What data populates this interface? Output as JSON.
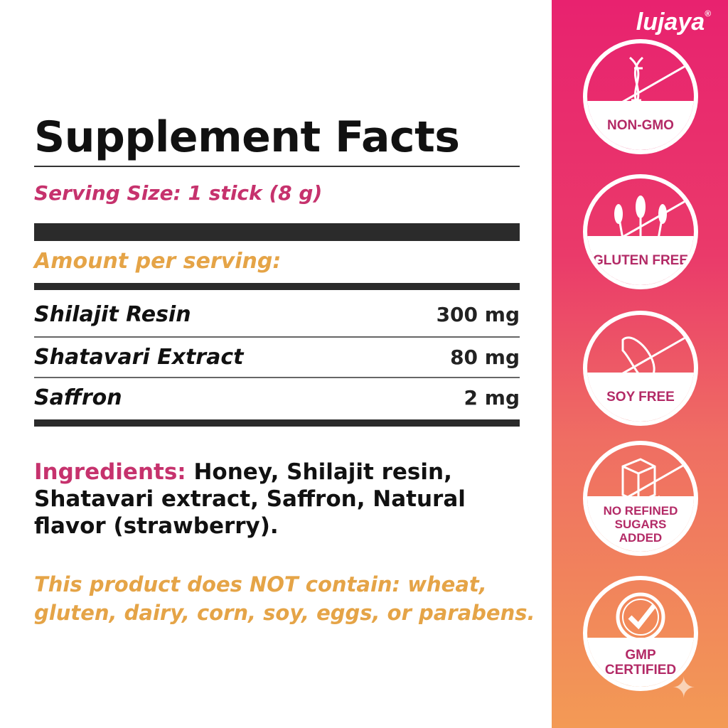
{
  "title": "Supplement Facts",
  "serving_size": "Serving Size: 1 stick (8 g)",
  "amount_per_serving": "Amount per serving:",
  "rows": [
    {
      "name": "Shilajit Resin",
      "amount": "300 mg"
    },
    {
      "name": "Shatavari Extract",
      "amount": "80 mg"
    },
    {
      "name": "Saffron",
      "amount": "2 mg"
    }
  ],
  "ingredients": {
    "label": "Ingredients:",
    "text": " Honey, Shilajit resin, Shatavari extract, Saffron, Natural flavor (strawberry)."
  },
  "disclaimer": "This product does NOT contain: wheat, gluten, dairy, corn, soy, eggs, or parabens.",
  "brand": {
    "name": "lujaya",
    "mark": "®"
  },
  "badges": [
    {
      "label": "NON-GMO",
      "icon": "dna-icon"
    },
    {
      "label": "GLUTEN FREE",
      "icon": "wheat-icon"
    },
    {
      "label": "SOY FREE",
      "icon": "soybean-icon"
    },
    {
      "label": "NO REFINED SUGARS ADDED",
      "icon": "sugar-cube-icon"
    },
    {
      "label": "GMP CERTIFIED",
      "icon": "check-seal-icon"
    }
  ],
  "colors": {
    "pink": "#c6326d",
    "orange": "#e5a447",
    "side_top": "#e8226f",
    "side_bottom": "#f39a55"
  }
}
